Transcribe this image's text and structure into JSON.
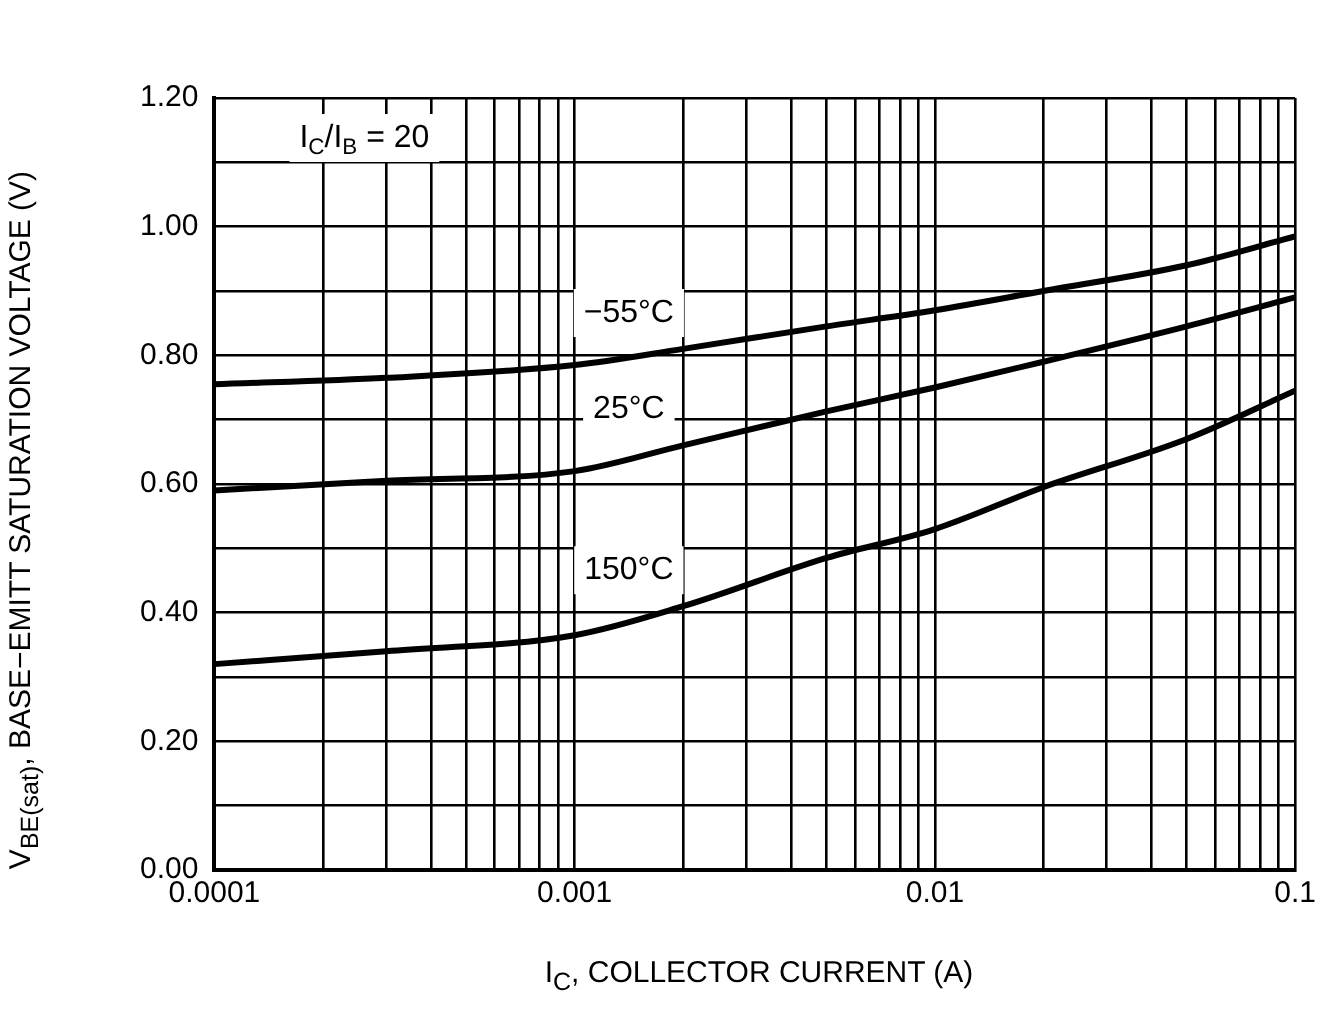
{
  "chart_data": {
    "type": "line",
    "xlabel": "I$_{C}$, COLLECTOR CURRENT (A)",
    "ylabel": "V$_{BE(sat)}$, BASE−EMITT SATURATION VOLTAGE (V)",
    "log": "x",
    "grid": true,
    "legend": false,
    "marker": "none",
    "line_style": "solid",
    "xlim": [
      0.0001,
      0.1
    ],
    "ylim": [
      0,
      1.2
    ],
    "xticks": [
      0.0001,
      {
        "value": 0.0002,
        "label": null
      },
      {
        "value": 0.0003,
        "label": null
      },
      {
        "value": 0.0004,
        "label": null
      },
      {
        "value": 0.0005,
        "label": null
      },
      {
        "value": 0.0006,
        "label": null
      },
      {
        "value": 0.0007,
        "label": null
      },
      {
        "value": 0.0008,
        "label": null
      },
      {
        "value": 0.0009,
        "label": null
      },
      0.001,
      {
        "value": 0.002,
        "label": null
      },
      {
        "value": 0.003,
        "label": null
      },
      {
        "value": 0.004,
        "label": null
      },
      {
        "value": 0.005,
        "label": null
      },
      {
        "value": 0.006,
        "label": null
      },
      {
        "value": 0.007,
        "label": null
      },
      {
        "value": 0.008,
        "label": null
      },
      {
        "value": 0.009,
        "label": null
      },
      0.01,
      {
        "value": 0.02,
        "label": null
      },
      {
        "value": 0.03,
        "label": null
      },
      {
        "value": 0.04,
        "label": null
      },
      {
        "value": 0.05,
        "label": null
      },
      {
        "value": 0.06,
        "label": null
      },
      {
        "value": 0.07,
        "label": null
      },
      {
        "value": 0.08,
        "label": null
      },
      {
        "value": 0.09,
        "label": null
      },
      0.1
    ],
    "yticks": [
      {
        "value": 0,
        "label": "0.00"
      },
      {
        "value": 0.1,
        "label": null
      },
      {
        "value": 0.2,
        "label": "0.20"
      },
      {
        "value": 0.3,
        "label": null
      },
      {
        "value": 0.4,
        "label": "0.40"
      },
      {
        "value": 0.5,
        "label": null
      },
      {
        "value": 0.6,
        "label": "0.60"
      },
      {
        "value": 0.7,
        "label": null
      },
      {
        "value": 0.8,
        "label": "0.80"
      },
      {
        "value": 0.9,
        "label": null
      },
      {
        "value": 1.0,
        "label": "1.00"
      },
      {
        "value": 1.1,
        "label": null
      },
      {
        "value": 1.2,
        "label": "1.20"
      }
    ],
    "x": [
      0.0001,
      0.0003,
      0.001,
      0.002,
      0.005,
      0.01,
      0.02,
      0.05,
      0.1
    ],
    "series": [
      {
        "name": "−55°C",
        "color": "#000000",
        "values": [
          0.755,
          0.765,
          0.785,
          0.81,
          0.845,
          0.87,
          0.9,
          0.94,
          0.985
        ]
      },
      {
        "name": "25°C",
        "color": "#000000",
        "values": [
          0.59,
          0.605,
          0.62,
          0.66,
          0.713,
          0.75,
          0.79,
          0.845,
          0.89
        ]
      },
      {
        "name": "150°C",
        "color": "#000000",
        "values": [
          0.32,
          0.34,
          0.365,
          0.41,
          0.485,
          0.53,
          0.595,
          0.67,
          0.745
        ]
      }
    ],
    "annotations": [
      "I$_{C}$/I$_{B}$ = 20"
    ]
  }
}
